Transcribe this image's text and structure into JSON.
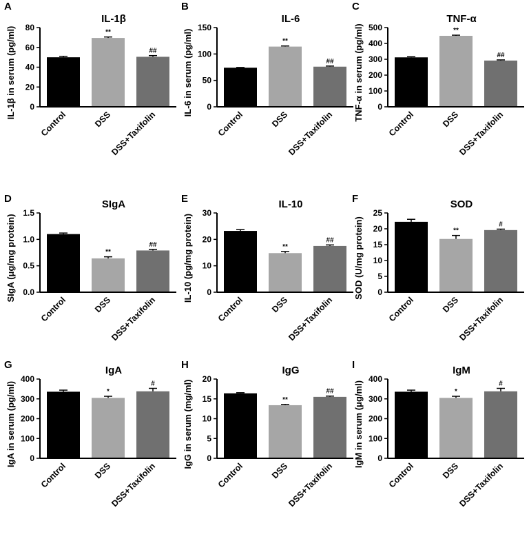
{
  "chart_data": [
    {
      "letter": "A",
      "type": "bar",
      "title": "IL-1β",
      "ylabel": "IL-1β in serum (pg/ml)",
      "categories": [
        "Control",
        "DSS",
        "DSS+Taxifolin"
      ],
      "values": [
        50,
        69.5,
        50.5
      ],
      "errors": [
        1,
        1,
        1.2
      ],
      "significance": [
        "",
        "**",
        "##"
      ],
      "ylim": [
        0,
        80
      ],
      "yticks": [
        0,
        20,
        40,
        60,
        80
      ],
      "colors": [
        "#000000",
        "#a6a6a6",
        "#707070"
      ]
    },
    {
      "letter": "B",
      "type": "bar",
      "title": "IL-6",
      "ylabel": "IL-6 in serum (pg/ml)",
      "categories": [
        "Control",
        "DSS",
        "DSS+Taxifolin"
      ],
      "values": [
        74,
        114,
        76
      ],
      "errors": [
        0.5,
        1.2,
        1.2
      ],
      "significance": [
        "",
        "**",
        "##"
      ],
      "ylim": [
        0,
        150
      ],
      "yticks": [
        0,
        50,
        100,
        150
      ],
      "colors": [
        "#000000",
        "#a6a6a6",
        "#707070"
      ]
    },
    {
      "letter": "C",
      "type": "bar",
      "title": "TNF-α",
      "ylabel": "TNF-α in serum (pg/ml)",
      "categories": [
        "Control",
        "DSS",
        "DSS+Taxifolin"
      ],
      "values": [
        312,
        448,
        292
      ],
      "errors": [
        4,
        4,
        4
      ],
      "significance": [
        "",
        "**",
        "##"
      ],
      "ylim": [
        0,
        500
      ],
      "yticks": [
        0,
        100,
        200,
        300,
        400,
        500
      ],
      "colors": [
        "#000000",
        "#a6a6a6",
        "#707070"
      ]
    },
    {
      "letter": "D",
      "type": "bar",
      "title": "SIgA",
      "ylabel": "SIgA (μg/mg protein)",
      "categories": [
        "Control",
        "DSS",
        "DSS+Taxifolin"
      ],
      "values": [
        1.1,
        0.64,
        0.79
      ],
      "errors": [
        0.02,
        0.03,
        0.02
      ],
      "significance": [
        "",
        "**",
        "##"
      ],
      "ylim": [
        0,
        1.5
      ],
      "yticks": [
        0.0,
        0.5,
        1.0,
        1.5
      ],
      "ytick_labels": [
        "0.0",
        "0.5",
        "1.0",
        "1.5"
      ],
      "colors": [
        "#000000",
        "#a6a6a6",
        "#707070"
      ]
    },
    {
      "letter": "E",
      "type": "bar",
      "title": "IL-10",
      "ylabel": "IL-10 (pg/mg protein)",
      "categories": [
        "Control",
        "DSS",
        "DSS+Taxifolin"
      ],
      "values": [
        23.2,
        14.8,
        17.5
      ],
      "errors": [
        0.5,
        0.6,
        0.4
      ],
      "significance": [
        "",
        "**",
        "##"
      ],
      "ylim": [
        0,
        30
      ],
      "yticks": [
        0,
        10,
        20,
        30
      ],
      "colors": [
        "#000000",
        "#a6a6a6",
        "#707070"
      ]
    },
    {
      "letter": "F",
      "type": "bar",
      "title": "SOD",
      "ylabel": "SOD (U/mg protein)",
      "categories": [
        "Control",
        "DSS",
        "DSS+Taxifolin"
      ],
      "values": [
        22.2,
        16.8,
        19.6
      ],
      "errors": [
        0.8,
        1.1,
        0.3
      ],
      "significance": [
        "",
        "**",
        "#"
      ],
      "ylim": [
        0,
        25
      ],
      "yticks": [
        0,
        5,
        10,
        15,
        20,
        25
      ],
      "colors": [
        "#000000",
        "#a6a6a6",
        "#707070"
      ]
    },
    {
      "letter": "G",
      "type": "bar",
      "title": "IgA",
      "ylabel": "IgA in serum (pg/ml)",
      "categories": [
        "Control",
        "DSS",
        "DSS+Taxifolin"
      ],
      "values": [
        336,
        305,
        338
      ],
      "errors": [
        8,
        8,
        15
      ],
      "significance": [
        "",
        "*",
        "#"
      ],
      "ylim": [
        0,
        400
      ],
      "yticks": [
        0,
        100,
        200,
        300,
        400
      ],
      "colors": [
        "#000000",
        "#a6a6a6",
        "#707070"
      ]
    },
    {
      "letter": "H",
      "type": "bar",
      "title": "IgG",
      "ylabel": "IgG in serum (mg/ml)",
      "categories": [
        "Control",
        "DSS",
        "DSS+Taxifolin"
      ],
      "values": [
        16.4,
        13.4,
        15.5
      ],
      "errors": [
        0.15,
        0.2,
        0.2
      ],
      "significance": [
        "",
        "**",
        "##"
      ],
      "ylim": [
        0,
        20
      ],
      "yticks": [
        0,
        5,
        10,
        15,
        20
      ],
      "colors": [
        "#000000",
        "#a6a6a6",
        "#707070"
      ]
    },
    {
      "letter": "I",
      "type": "bar",
      "title": "IgM",
      "ylabel": "IgM in serum (μg/ml)",
      "categories": [
        "Control",
        "DSS",
        "DSS+Taxifolin"
      ],
      "values": [
        336,
        305,
        338
      ],
      "errors": [
        8,
        8,
        15
      ],
      "significance": [
        "",
        "*",
        "#"
      ],
      "ylim": [
        0,
        400
      ],
      "yticks": [
        0,
        100,
        200,
        300,
        400
      ],
      "colors": [
        "#000000",
        "#a6a6a6",
        "#707070"
      ]
    }
  ]
}
